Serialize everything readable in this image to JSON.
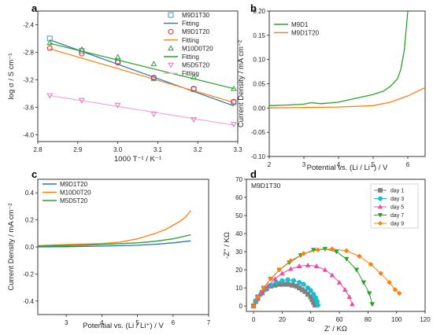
{
  "chart_data": [
    {
      "panel": "a",
      "type": "scatter",
      "xlabel": "1000 T⁻¹ / K⁻¹",
      "ylabel": "log σ / S cm⁻¹",
      "xlim": [
        2.8,
        3.3
      ],
      "ylim": [
        -4.1,
        -2.2
      ],
      "xticks": [
        "2.8",
        "2.9",
        "3.0",
        "3.1",
        "3.2",
        "3.3"
      ],
      "yticks": [
        "-2.4",
        "-2.8",
        "-3.2",
        "-3.6",
        "-4.0"
      ],
      "legend_position": "top-right",
      "legend": [
        "M9D1T30",
        "Fitting",
        "M9D1T20",
        "Fitting",
        "M10D0T20",
        "Fitting",
        "M5D5T20",
        "Fitting"
      ],
      "series": [
        {
          "name": "M9D1T30",
          "marker": "square",
          "color": "#4a90d9",
          "x": [
            2.83,
            2.91,
            3.0,
            3.09,
            3.19,
            3.29
          ],
          "y": [
            -2.6,
            -2.78,
            -2.93,
            -3.18,
            -3.34,
            -3.53
          ],
          "fit": {
            "color": "#1f77b4",
            "x": [
              2.83,
              3.29
            ],
            "y": [
              -2.62,
              -3.58
            ]
          }
        },
        {
          "name": "M9D1T20",
          "marker": "circle",
          "color": "#d62728",
          "x": [
            2.83,
            2.91,
            3.0,
            3.09,
            3.19,
            3.29
          ],
          "y": [
            -2.74,
            -2.82,
            -2.95,
            -3.17,
            -3.33,
            -3.52
          ],
          "fit": {
            "color": "#ff7f0e",
            "x": [
              2.83,
              3.29
            ],
            "y": [
              -2.75,
              -3.53
            ]
          }
        },
        {
          "name": "M10D0T20",
          "marker": "triangle",
          "color": "#2ca02c",
          "x": [
            2.83,
            2.91,
            3.0,
            3.09,
            3.19,
            3.29
          ],
          "y": [
            -2.66,
            -2.76,
            -2.87,
            -2.97,
            -3.16,
            -3.33
          ],
          "fit": {
            "color": "#2ca02c",
            "x": [
              2.83,
              3.29
            ],
            "y": [
              -2.67,
              -3.33
            ]
          }
        },
        {
          "name": "M5D5T20",
          "marker": "triangle-down",
          "color": "#e377c2",
          "x": [
            2.83,
            2.91,
            3.0,
            3.09,
            3.19,
            3.29
          ],
          "y": [
            -3.43,
            -3.5,
            -3.57,
            -3.7,
            -3.78,
            -3.85
          ],
          "fit": {
            "color": "#f7a6d8",
            "x": [
              2.83,
              3.29
            ],
            "y": [
              -3.43,
              -3.86
            ]
          }
        }
      ]
    },
    {
      "panel": "b",
      "type": "line",
      "xlabel": "Potential vs. (Li / Li⁺) / V",
      "ylabel": "Current Density / mA cm⁻²",
      "xlim": [
        2,
        6.5
      ],
      "ylim": [
        -0.1,
        0.2
      ],
      "xticks": [
        "2",
        "3",
        "4",
        "5",
        "6"
      ],
      "yticks": [
        "-0.10",
        "-0.05",
        "0.00",
        "0.05",
        "0.10",
        "0.15",
        "0.20"
      ],
      "legend_position": "top-left",
      "series": [
        {
          "name": "M9D1",
          "color": "#2ca02c",
          "x": [
            2.0,
            2.5,
            3.0,
            3.2,
            3.5,
            4.0,
            4.5,
            5.0,
            5.3,
            5.5,
            5.7,
            5.8,
            5.9,
            5.95,
            6.0
          ],
          "y": [
            0.005,
            0.006,
            0.008,
            0.011,
            0.009,
            0.012,
            0.02,
            0.028,
            0.035,
            0.045,
            0.06,
            0.08,
            0.12,
            0.16,
            0.2
          ]
        },
        {
          "name": "M9D1T20",
          "color": "#ff7f0e",
          "x": [
            2.0,
            3.0,
            4.0,
            5.0,
            5.5,
            6.0,
            6.5
          ],
          "y": [
            0.0,
            0.001,
            0.002,
            0.005,
            0.012,
            0.025,
            0.042
          ]
        }
      ]
    },
    {
      "panel": "c",
      "type": "line",
      "xlabel": "Potential vs. (Li / Li⁺) / V",
      "ylabel": "Current Density / mA cm⁻²",
      "xlim": [
        2.2,
        7
      ],
      "ylim": [
        -0.5,
        0.5
      ],
      "xticks": [
        "3",
        "4",
        "5",
        "6",
        "7"
      ],
      "yticks": [
        "-0.4",
        "-0.2",
        "0.0",
        "0.2",
        "0.4"
      ],
      "legend_position": "top-left",
      "series": [
        {
          "name": "M9D1T20",
          "color": "#1f77b4",
          "x": [
            2.2,
            3.0,
            4.0,
            5.0,
            5.5,
            6.0,
            6.5
          ],
          "y": [
            0.0,
            0.002,
            0.006,
            0.012,
            0.02,
            0.03,
            0.045
          ]
        },
        {
          "name": "M10D0T20",
          "color": "#ff7f0e",
          "x": [
            2.2,
            3.0,
            4.0,
            4.5,
            5.0,
            5.5,
            5.8,
            6.0,
            6.2,
            6.35,
            6.5
          ],
          "y": [
            0.01,
            0.018,
            0.025,
            0.035,
            0.06,
            0.1,
            0.13,
            0.16,
            0.19,
            0.22,
            0.27
          ]
        },
        {
          "name": "M5D5T20",
          "color": "#2ca02c",
          "x": [
            2.2,
            3.0,
            4.0,
            5.0,
            5.5,
            6.0,
            6.5
          ],
          "y": [
            0.005,
            0.01,
            0.018,
            0.03,
            0.042,
            0.06,
            0.09
          ]
        }
      ]
    },
    {
      "panel": "d",
      "type": "scatter",
      "title": "M9D1T30",
      "xlabel": "Z' / KΩ",
      "ylabel": "-Z'' / KΩ",
      "xlim": [
        -5,
        120
      ],
      "ylim": [
        -3,
        70
      ],
      "xticks": [
        "0",
        "20",
        "40",
        "60",
        "80",
        "100",
        "120"
      ],
      "yticks": [
        "0",
        "10",
        "20",
        "30",
        "40",
        "50",
        "60",
        "70"
      ],
      "legend_position": "top-right",
      "series": [
        {
          "name": "day 1",
          "marker": "square",
          "color": "#808080",
          "x": [
            0,
            1.5,
            3,
            6,
            9,
            12,
            15,
            18,
            21,
            24,
            27,
            30,
            32,
            34,
            36,
            38,
            40,
            41,
            42,
            43
          ],
          "y": [
            0,
            2.5,
            5,
            7.5,
            9.5,
            11,
            11.5,
            12,
            12,
            12,
            11.5,
            11,
            10,
            9,
            8,
            6.5,
            5,
            3.5,
            2,
            0.5
          ]
        },
        {
          "name": "day 3",
          "marker": "circle",
          "color": "#17becf",
          "x": [
            0,
            2,
            5,
            8,
            12,
            16,
            20,
            24,
            28,
            32,
            35,
            38,
            40,
            42,
            43.5,
            44.5,
            45
          ],
          "y": [
            0,
            3,
            6.5,
            9,
            11.5,
            13,
            14,
            14.5,
            14,
            13,
            12,
            10,
            8.5,
            6.5,
            4.5,
            2.5,
            0.5
          ]
        },
        {
          "name": "day 5",
          "marker": "triangle",
          "color": "#e84ca8",
          "x": [
            0,
            3,
            6,
            10,
            15,
            20,
            26,
            32,
            38,
            44,
            50,
            55,
            60,
            64,
            67,
            69
          ],
          "y": [
            0,
            4,
            7,
            11,
            15,
            18,
            20.5,
            22,
            22.5,
            22,
            20,
            17,
            13,
            9,
            5,
            1
          ]
        },
        {
          "name": "day 7",
          "marker": "triangle-down",
          "color": "#2ca02c",
          "x": [
            0,
            3,
            7,
            12,
            18,
            25,
            33,
            42,
            50,
            58,
            65,
            72,
            77,
            81,
            83
          ],
          "y": [
            0,
            5,
            10,
            15,
            20,
            24,
            28,
            31,
            31.5,
            30,
            26,
            20,
            13,
            7,
            1
          ]
        },
        {
          "name": "day 9",
          "marker": "diamond",
          "color": "#ff7f0e",
          "x": [
            0,
            3,
            7,
            12,
            18,
            26,
            35,
            45,
            55,
            65,
            74,
            82,
            89,
            95,
            99,
            102
          ],
          "y": [
            0,
            5,
            10,
            15,
            20,
            25,
            29,
            31,
            31.5,
            30.5,
            27.5,
            23,
            18,
            13,
            9,
            7
          ]
        }
      ]
    }
  ]
}
